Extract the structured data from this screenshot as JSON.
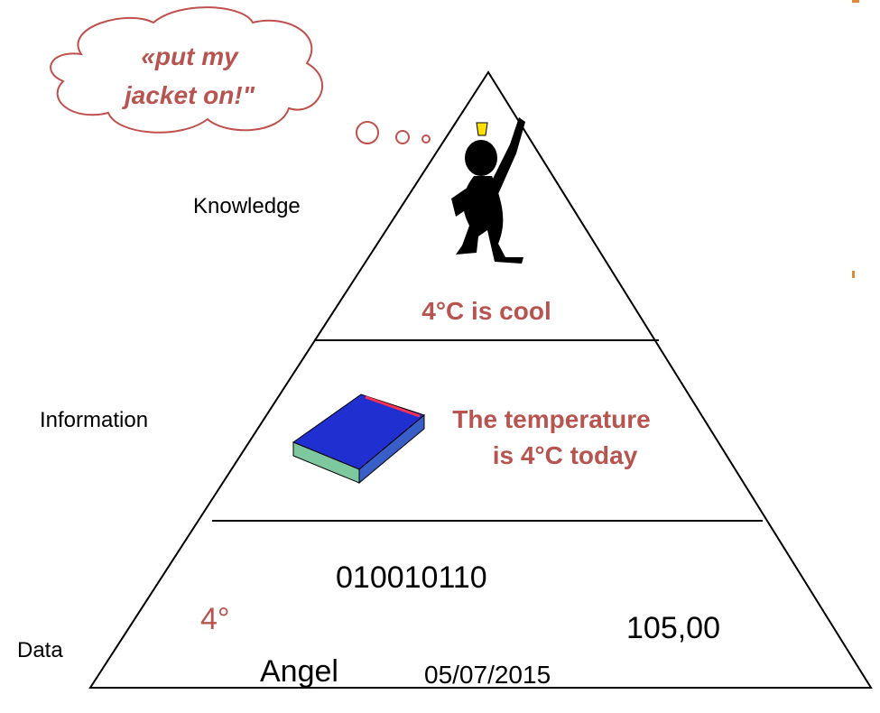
{
  "thought": {
    "lines": [
      "«put my",
      "jacket on!\""
    ]
  },
  "levels": [
    {
      "label": "Knowledge",
      "caption": [
        "4°C is cool"
      ]
    },
    {
      "label": "Information",
      "caption": [
        "The temperature",
        "is  4°C today"
      ]
    },
    {
      "label": "Data",
      "items": [
        "010010110",
        "4°",
        "105,00",
        "Angel",
        "05/07/2015"
      ]
    }
  ]
}
